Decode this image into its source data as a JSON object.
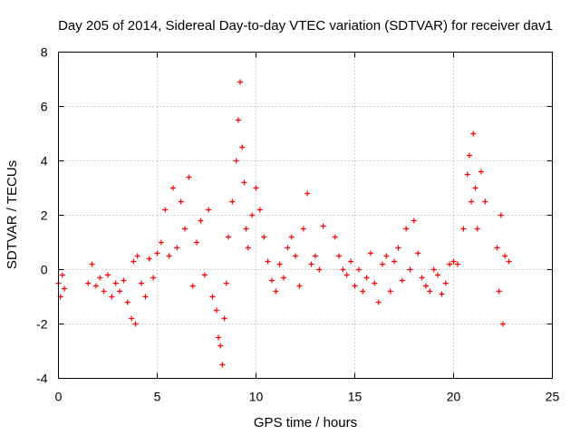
{
  "chart_data": {
    "type": "scatter",
    "title": "Day 205 of 2014, Sidereal Day-to-day VTEC variation (SDTVAR) for receiver dav1",
    "xlabel": "GPS time / hours",
    "ylabel": "SDTVAR / TECUs",
    "xlim": [
      0,
      25
    ],
    "ylim": [
      -4,
      8
    ],
    "xticks": [
      0,
      5,
      10,
      15,
      20,
      25
    ],
    "yticks": [
      -4,
      -2,
      0,
      2,
      4,
      6,
      8
    ],
    "xtick_labels": [
      "0",
      "5",
      "10",
      "15",
      "20",
      "25"
    ],
    "ytick_labels": [
      "-4",
      "-2",
      "0",
      "2",
      "4",
      "6",
      "8"
    ],
    "grid": true,
    "legend": "none",
    "marker": "plus",
    "marker_color": "#ff0000",
    "series": [
      {
        "name": "SDTVAR",
        "x": [
          0.0,
          0.1,
          0.2,
          0.3,
          1.5,
          1.7,
          1.9,
          2.1,
          2.3,
          2.5,
          2.7,
          2.9,
          3.1,
          3.3,
          3.5,
          3.7,
          3.8,
          3.9,
          4.0,
          4.2,
          4.4,
          4.6,
          4.8,
          5.0,
          5.2,
          5.4,
          5.6,
          5.8,
          6.0,
          6.2,
          6.4,
          6.6,
          6.8,
          7.0,
          7.2,
          7.4,
          7.6,
          7.8,
          8.0,
          8.1,
          8.2,
          8.3,
          8.4,
          8.5,
          8.6,
          8.8,
          9.0,
          9.1,
          9.2,
          9.3,
          9.4,
          9.5,
          9.6,
          9.8,
          10.0,
          10.2,
          10.4,
          10.6,
          10.8,
          11.0,
          11.2,
          11.4,
          11.6,
          11.8,
          12.0,
          12.2,
          12.4,
          12.6,
          12.8,
          13.0,
          13.2,
          13.4,
          14.0,
          14.2,
          14.4,
          14.6,
          14.8,
          15.0,
          15.2,
          15.4,
          15.6,
          15.8,
          16.0,
          16.2,
          16.4,
          16.6,
          16.8,
          17.0,
          17.2,
          17.4,
          17.6,
          17.8,
          18.0,
          18.2,
          18.4,
          18.6,
          18.8,
          19.0,
          19.2,
          19.4,
          19.6,
          19.8,
          20.0,
          20.2,
          20.5,
          20.7,
          20.8,
          20.9,
          21.0,
          21.1,
          21.2,
          21.4,
          21.6,
          22.2,
          22.3,
          22.4,
          22.5,
          22.6,
          22.8
        ],
        "y": [
          -0.5,
          -1.0,
          -0.2,
          -0.7,
          -0.5,
          0.2,
          -0.6,
          -0.3,
          -0.8,
          -0.2,
          -1.0,
          -0.5,
          -0.8,
          -0.4,
          -1.2,
          -1.8,
          0.3,
          -2.0,
          0.5,
          -0.5,
          -1.0,
          0.4,
          -0.3,
          0.6,
          1.0,
          2.2,
          0.5,
          3.0,
          0.8,
          2.5,
          1.5,
          3.4,
          -0.6,
          1.0,
          1.8,
          -0.2,
          2.2,
          -1.0,
          -1.5,
          -2.5,
          -2.8,
          -3.5,
          -1.8,
          -0.5,
          1.2,
          2.5,
          4.0,
          5.5,
          6.9,
          4.5,
          3.2,
          1.5,
          0.8,
          2.0,
          3.0,
          2.2,
          1.2,
          0.3,
          -0.4,
          -0.8,
          0.2,
          -0.3,
          0.8,
          1.2,
          0.5,
          -0.6,
          1.5,
          2.8,
          0.2,
          0.5,
          0.0,
          1.6,
          1.2,
          0.5,
          0.0,
          -0.2,
          0.3,
          -0.6,
          0.0,
          -0.8,
          -0.3,
          0.6,
          -0.5,
          -1.2,
          0.2,
          0.5,
          -0.8,
          0.3,
          0.8,
          -0.4,
          1.5,
          0.0,
          1.8,
          0.6,
          -0.3,
          -0.6,
          -0.8,
          0.0,
          -0.2,
          -0.9,
          -0.5,
          0.2,
          0.3,
          0.2,
          1.5,
          3.5,
          4.2,
          2.5,
          5.0,
          3.0,
          1.5,
          3.6,
          2.5,
          0.8,
          -0.8,
          2.0,
          -2.0,
          0.5,
          0.3
        ]
      }
    ]
  }
}
